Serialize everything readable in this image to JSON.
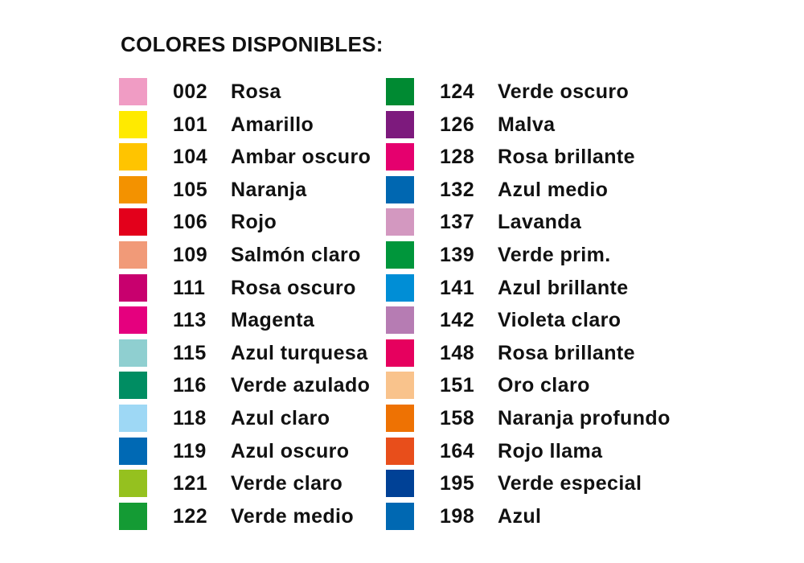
{
  "title": "COLORES DISPONIBLES:",
  "left": [
    {
      "code": "002",
      "name": "Rosa",
      "color": "#F09CC4"
    },
    {
      "code": "101",
      "name": "Amarillo",
      "color": "#FFEA00"
    },
    {
      "code": "104",
      "name": "Ambar oscuro",
      "color": "#FFC400"
    },
    {
      "code": "105",
      "name": "Naranja",
      "color": "#F39200"
    },
    {
      "code": "106",
      "name": "Rojo",
      "color": "#E3001B"
    },
    {
      "code": "109",
      "name": "Salmón claro",
      "color": "#F19A78"
    },
    {
      "code": "111",
      "name": "Rosa oscuro",
      "color": "#C8006E"
    },
    {
      "code": "113",
      "name": "Magenta",
      "color": "#E5007E"
    },
    {
      "code": "115",
      "name": "Azul turquesa",
      "color": "#8FCFD0"
    },
    {
      "code": "116",
      "name": "Verde azulado",
      "color": "#008D62"
    },
    {
      "code": "118",
      "name": "Azul claro",
      "color": "#9ED8F5"
    },
    {
      "code": "119",
      "name": "Azul oscuro",
      "color": "#0069B4"
    },
    {
      "code": "121",
      "name": "Verde claro",
      "color": "#95C11F"
    },
    {
      "code": "122",
      "name": "Verde medio",
      "color": "#149B34"
    }
  ],
  "right": [
    {
      "code": "124",
      "name": "Verde oscuro",
      "color": "#008A32"
    },
    {
      "code": "126",
      "name": "Malva",
      "color": "#7D1A7D"
    },
    {
      "code": "128",
      "name": "Rosa brillante",
      "color": "#E5006E"
    },
    {
      "code": "132",
      "name": "Azul medio",
      "color": "#0067B1"
    },
    {
      "code": "137",
      "name": "Lavanda",
      "color": "#D398C0"
    },
    {
      "code": "139",
      "name": "Verde prim.",
      "color": "#00963B"
    },
    {
      "code": "141",
      "name": "Azul brillante",
      "color": "#008ED6"
    },
    {
      "code": "142",
      "name": "Violeta claro",
      "color": "#B67CB3"
    },
    {
      "code": "148",
      "name": "Rosa brillante",
      "color": "#E6005E"
    },
    {
      "code": "151",
      "name": "Oro claro",
      "color": "#F9C38C"
    },
    {
      "code": "158",
      "name": "Naranja profundo",
      "color": "#EE7203"
    },
    {
      "code": "164",
      "name": "Rojo llama",
      "color": "#E84E1B"
    },
    {
      "code": "195",
      "name": "Verde especial",
      "color": "#004196"
    },
    {
      "code": "198",
      "name": "Azul",
      "color": "#0068B2"
    }
  ]
}
